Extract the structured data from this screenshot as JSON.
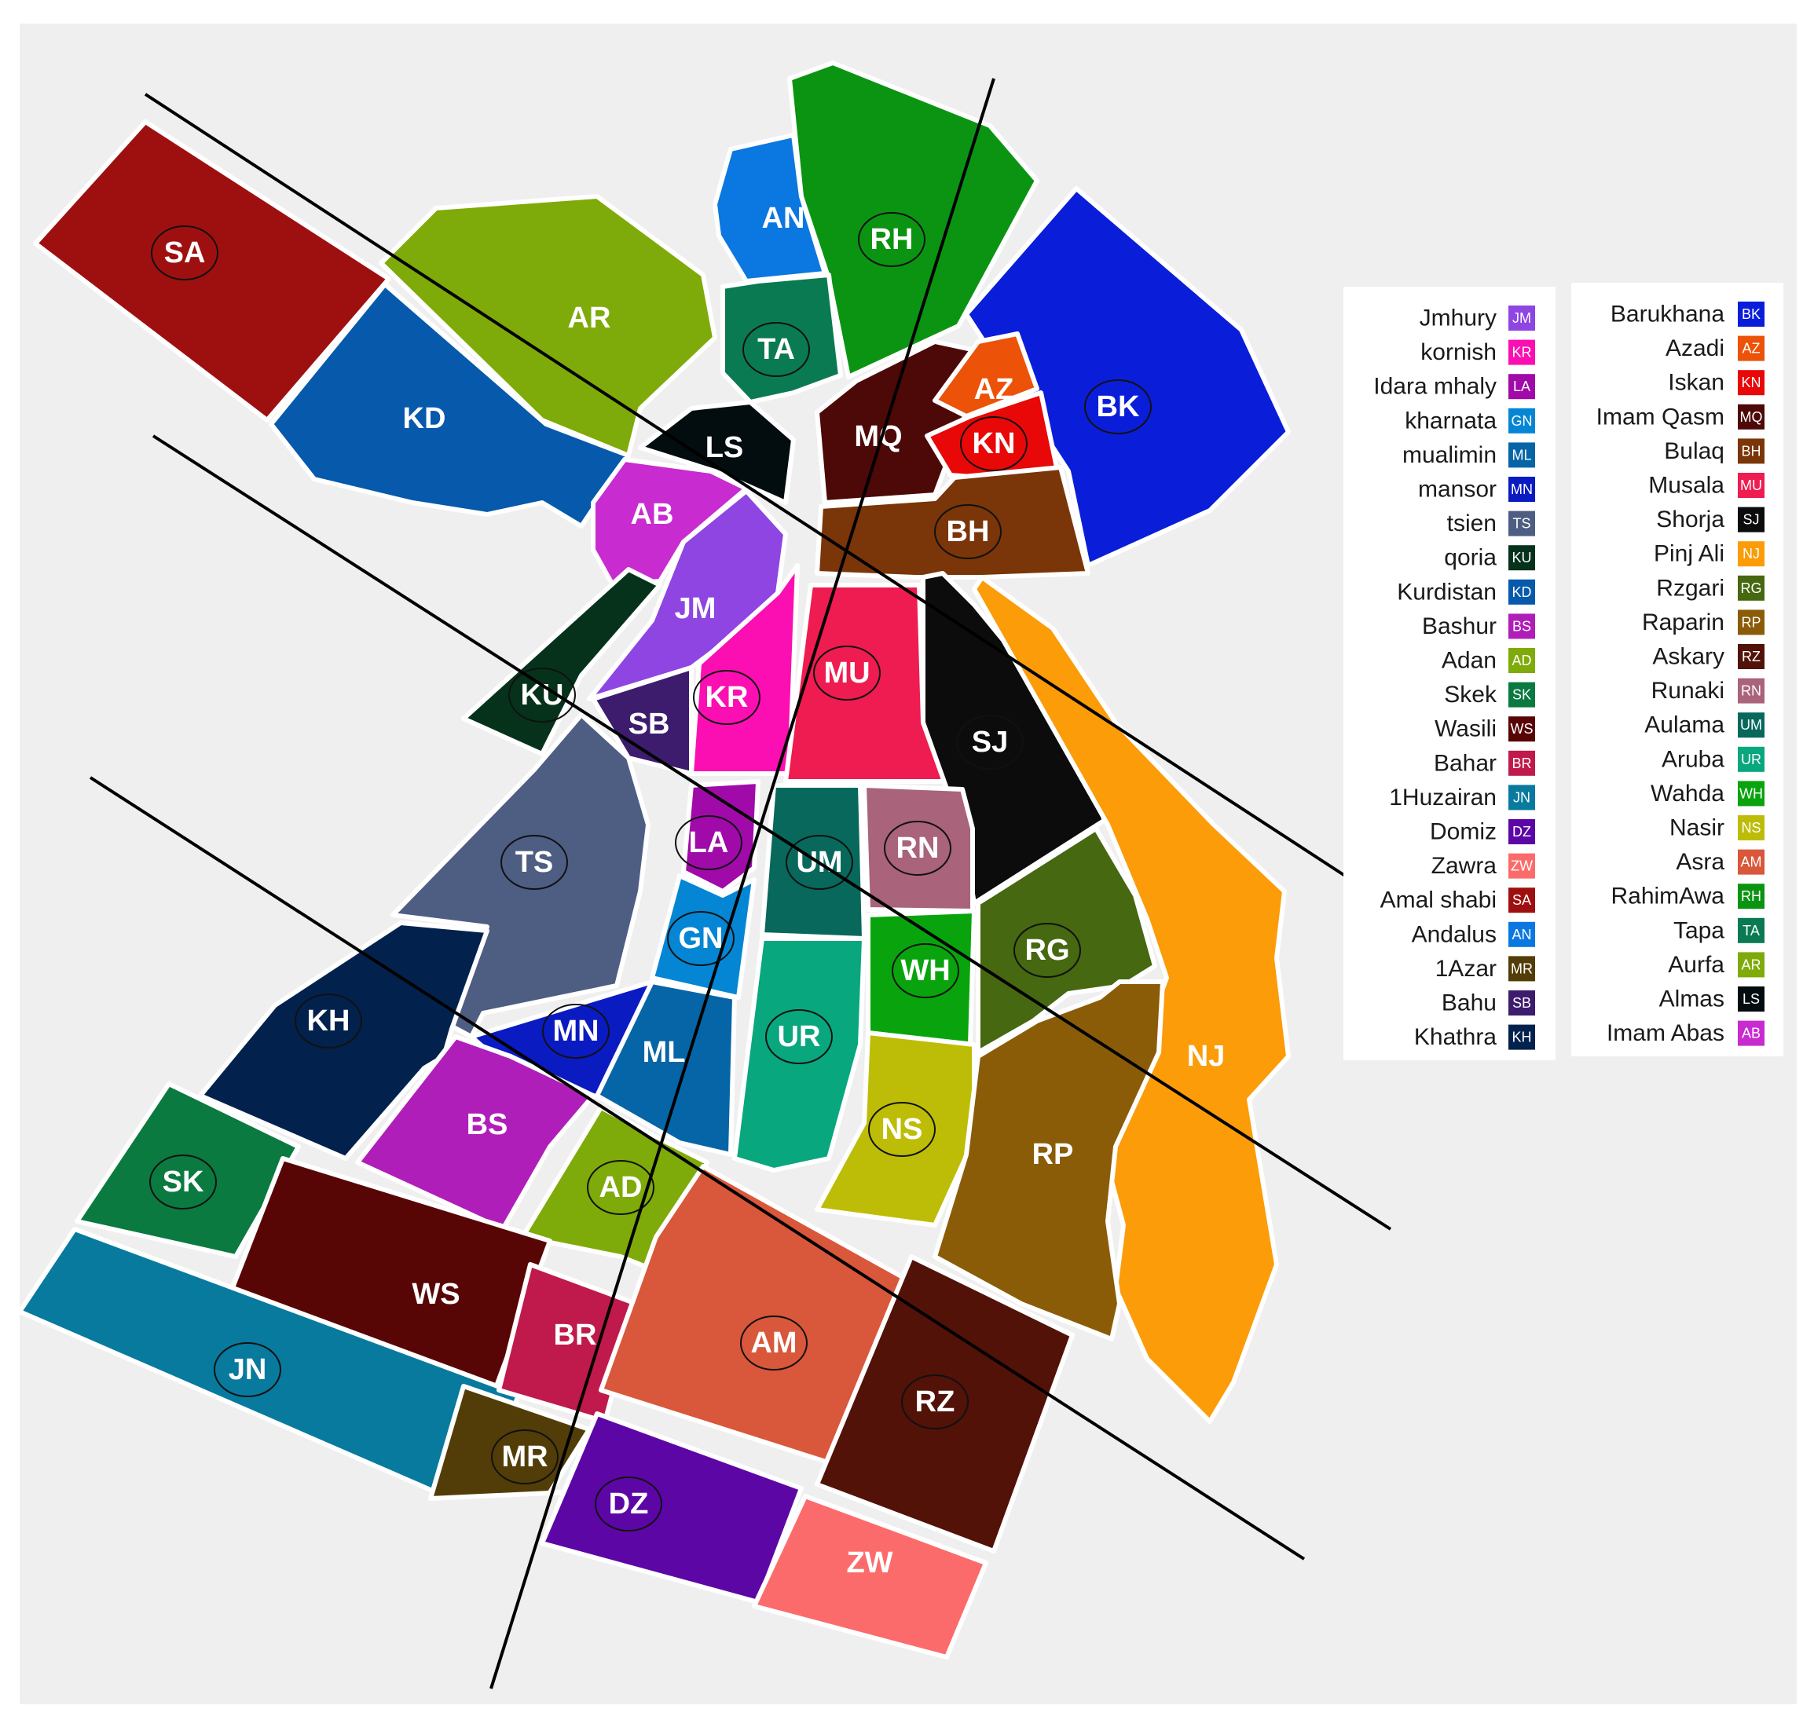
{
  "zones": [
    {
      "code": "SA",
      "color": "#9e1010",
      "ring": true
    },
    {
      "code": "AR",
      "color": "#7eab09",
      "ring": false
    },
    {
      "code": "AN",
      "color": "#0b77e0",
      "ring": false
    },
    {
      "code": "RH",
      "color": "#0b9412",
      "ring": true
    },
    {
      "code": "BK",
      "color": "#0a1ed9",
      "ring": true
    },
    {
      "code": "KD",
      "color": "#0659ab",
      "ring": false
    },
    {
      "code": "TA",
      "color": "#0a7a52",
      "ring": true
    },
    {
      "code": "LS",
      "color": "#030d10",
      "ring": false
    },
    {
      "code": "MQ",
      "color": "#4d0808",
      "ring": false
    },
    {
      "code": "AZ",
      "color": "#ec5208",
      "ring": false
    },
    {
      "code": "KN",
      "color": "#e80808",
      "ring": true
    },
    {
      "code": "AB",
      "color": "#c82bd0",
      "ring": false
    },
    {
      "code": "BH",
      "color": "#7a3509",
      "ring": true
    },
    {
      "code": "JM",
      "color": "#8e45e2",
      "ring": false
    },
    {
      "code": "KU",
      "color": "#06321b",
      "ring": true
    },
    {
      "code": "SB",
      "color": "#3d1c6e",
      "ring": false
    },
    {
      "code": "KR",
      "color": "#fb0fb2",
      "ring": true
    },
    {
      "code": "MU",
      "color": "#ee1c50",
      "ring": true
    },
    {
      "code": "SJ",
      "color": "#0c0c0c",
      "ring": true
    },
    {
      "code": "NJ",
      "color": "#fb9c08",
      "ring": false
    },
    {
      "code": "TS",
      "color": "#4e5d82",
      "ring": true
    },
    {
      "code": "LA",
      "color": "#a00aa9",
      "ring": true
    },
    {
      "code": "UM",
      "color": "#08685c",
      "ring": true
    },
    {
      "code": "RN",
      "color": "#a9637b",
      "ring": true
    },
    {
      "code": "GN",
      "color": "#0586d4",
      "ring": true
    },
    {
      "code": "WH",
      "color": "#09a40d",
      "ring": true
    },
    {
      "code": "RG",
      "color": "#456810",
      "ring": true
    },
    {
      "code": "KH",
      "color": "#02224d",
      "ring": true
    },
    {
      "code": "MN",
      "color": "#0b1bc2",
      "ring": true
    },
    {
      "code": "ML",
      "color": "#0665a6",
      "ring": false
    },
    {
      "code": "UR",
      "color": "#08a77e",
      "ring": true
    },
    {
      "code": "NS",
      "color": "#bdbd08",
      "ring": true
    },
    {
      "code": "RP",
      "color": "#8b5c08",
      "ring": false
    },
    {
      "code": "BS",
      "color": "#b01eb9",
      "ring": false
    },
    {
      "code": "SK",
      "color": "#0a7a40",
      "ring": true
    },
    {
      "code": "AD",
      "color": "#7eab09",
      "ring": true
    },
    {
      "code": "WS",
      "color": "#580505",
      "ring": false
    },
    {
      "code": "JN",
      "color": "#087a9e",
      "ring": true
    },
    {
      "code": "BR",
      "color": "#bf1a4b",
      "ring": false
    },
    {
      "code": "AM",
      "color": "#d9573a",
      "ring": true
    },
    {
      "code": "RZ",
      "color": "#521208",
      "ring": true
    },
    {
      "code": "MR",
      "color": "#523d08",
      "ring": true
    },
    {
      "code": "DZ",
      "color": "#5d06a6",
      "ring": true
    },
    {
      "code": "ZW",
      "color": "#fc6b6b",
      "ring": false
    }
  ],
  "legend": {
    "left": [
      {
        "name": "Jmhury",
        "code": "JM",
        "color": "#8e45e2"
      },
      {
        "name": "kornish",
        "code": "KR",
        "color": "#fb0fb2"
      },
      {
        "name": "Idara mhaly",
        "code": "LA",
        "color": "#a00aa9"
      },
      {
        "name": "kharnata",
        "code": "GN",
        "color": "#0586d4"
      },
      {
        "name": "mualimin",
        "code": "ML",
        "color": "#0665a6"
      },
      {
        "name": "mansor",
        "code": "MN",
        "color": "#0b1bc2"
      },
      {
        "name": "tsien",
        "code": "TS",
        "color": "#4e5d82"
      },
      {
        "name": "qoria",
        "code": "KU",
        "color": "#06321b"
      },
      {
        "name": "Kurdistan",
        "code": "KD",
        "color": "#0659ab"
      },
      {
        "name": "Bashur",
        "code": "BS",
        "color": "#b01eb9"
      },
      {
        "name": "Adan",
        "code": "AD",
        "color": "#7eab09"
      },
      {
        "name": "Skek",
        "code": "SK",
        "color": "#0a7a40"
      },
      {
        "name": "Wasili",
        "code": "WS",
        "color": "#580505"
      },
      {
        "name": "Bahar",
        "code": "BR",
        "color": "#bf1a4b"
      },
      {
        "name": "1Huzairan",
        "code": "JN",
        "color": "#087a9e"
      },
      {
        "name": "Domiz",
        "code": "DZ",
        "color": "#5d06a6"
      },
      {
        "name": "Zawra",
        "code": "ZW",
        "color": "#fc6b6b"
      },
      {
        "name": "Amal shabi",
        "code": "SA",
        "color": "#9e1010"
      },
      {
        "name": "Andalus",
        "code": "AN",
        "color": "#0b77e0"
      },
      {
        "name": "1Azar",
        "code": "MR",
        "color": "#523d08"
      },
      {
        "name": "Bahu",
        "code": "SB",
        "color": "#3d1c6e"
      },
      {
        "name": "Khathra",
        "code": "KH",
        "color": "#02224d"
      }
    ],
    "right": [
      {
        "name": "Barukhana",
        "code": "BK",
        "color": "#0a1ed9"
      },
      {
        "name": "Azadi",
        "code": "AZ",
        "color": "#ec5208"
      },
      {
        "name": "Iskan",
        "code": "KN",
        "color": "#e80808"
      },
      {
        "name": "Imam Qasm",
        "code": "MQ",
        "color": "#4d0808"
      },
      {
        "name": "Bulaq",
        "code": "BH",
        "color": "#7a3509"
      },
      {
        "name": "Musala",
        "code": "MU",
        "color": "#ee1c50"
      },
      {
        "name": "Shorja",
        "code": "SJ",
        "color": "#0c0c0c"
      },
      {
        "name": "Pinj Ali",
        "code": "NJ",
        "color": "#fb9c08"
      },
      {
        "name": "Rzgari",
        "code": "RG",
        "color": "#456810"
      },
      {
        "name": "Raparin",
        "code": "RP",
        "color": "#8b5c08"
      },
      {
        "name": "Askary",
        "code": "RZ",
        "color": "#521208"
      },
      {
        "name": "Runaki",
        "code": "RN",
        "color": "#a9637b"
      },
      {
        "name": "Aulama",
        "code": "UM",
        "color": "#08685c"
      },
      {
        "name": "Aruba",
        "code": "UR",
        "color": "#08a77e"
      },
      {
        "name": "Wahda",
        "code": "WH",
        "color": "#09a40d"
      },
      {
        "name": "Nasir",
        "code": "NS",
        "color": "#bdbd08"
      },
      {
        "name": "Asra",
        "code": "AM",
        "color": "#d9573a"
      },
      {
        "name": "RahimAwa",
        "code": "RH",
        "color": "#0b9412"
      },
      {
        "name": "Tapa",
        "code": "TA",
        "color": "#0a7a52"
      },
      {
        "name": "Aurfa",
        "code": "AR",
        "color": "#7eab09"
      },
      {
        "name": "Almas",
        "code": "LS",
        "color": "#030d10"
      },
      {
        "name": "Imam Abas",
        "code": "AB",
        "color": "#c82bd0"
      }
    ]
  }
}
